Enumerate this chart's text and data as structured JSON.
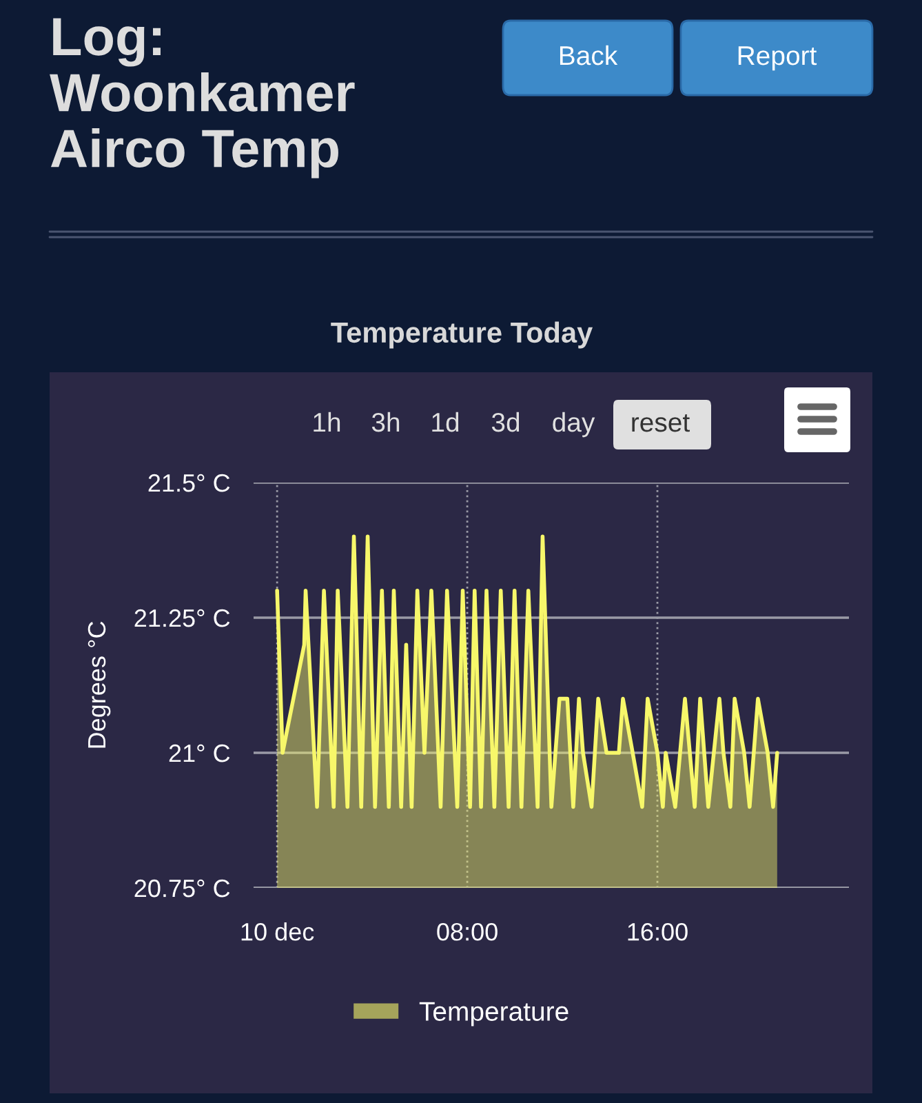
{
  "chart_data": {
    "type": "area",
    "title": "Temperature Today",
    "ylabel": "Degrees °C",
    "annotations": [
      "Log:\nWoonkamer\nAirco Temp",
      "Back",
      "Report",
      "1h",
      "3h",
      "1d",
      "3d",
      "day",
      "reset"
    ],
    "x": [
      0.0,
      0.23,
      1.14,
      1.2,
      1.68,
      1.97,
      2.38,
      2.55,
      2.96,
      3.23,
      3.54,
      3.81,
      4.12,
      4.41,
      4.7,
      4.91,
      5.22,
      5.43,
      5.66,
      5.9,
      6.2,
      6.49,
      6.59,
      6.88,
      7.15,
      7.58,
      7.81,
      8.12,
      8.31,
      8.58,
      8.81,
      9.14,
      9.41,
      9.74,
      9.99,
      10.28,
      10.57,
      10.96,
      11.17,
      11.54,
      11.88,
      12.21,
      12.46,
      12.7,
      12.87,
      13.23,
      13.51,
      13.86,
      14.38,
      14.55,
      14.96,
      15.36,
      15.59,
      16.0,
      16.23,
      16.35,
      16.75,
      17.16,
      17.57,
      17.8,
      18.14,
      18.61,
      18.78,
      19.07,
      19.25,
      19.65,
      19.88,
      20.23,
      20.64,
      20.87,
      21.04
    ],
    "series": [
      {
        "name": "Temperature",
        "color": "#f7f76a",
        "values": [
          21.3,
          21.0,
          21.2,
          21.3,
          20.9,
          21.3,
          20.9,
          21.3,
          20.9,
          21.4,
          20.9,
          21.4,
          20.9,
          21.3,
          20.9,
          21.3,
          20.9,
          21.2,
          20.9,
          21.3,
          21.0,
          21.3,
          21.2,
          20.9,
          21.3,
          20.9,
          21.3,
          20.9,
          21.3,
          20.9,
          21.3,
          20.9,
          21.3,
          20.9,
          21.3,
          20.9,
          21.3,
          20.9,
          21.4,
          20.9,
          21.1,
          21.1,
          20.9,
          21.1,
          21.0,
          20.9,
          21.1,
          21.0,
          21.0,
          21.1,
          21.0,
          20.9,
          21.1,
          21.0,
          20.9,
          21.0,
          20.9,
          21.1,
          20.9,
          21.1,
          20.9,
          21.1,
          21.0,
          20.9,
          21.1,
          21.0,
          20.9,
          21.1,
          21.0,
          20.9,
          21.0
        ]
      }
    ],
    "xlim": [
      -0.99,
      24.06
    ],
    "ylim": [
      20.75,
      21.5
    ],
    "xticks": [
      {
        "value": 0,
        "label": "10 dec"
      },
      {
        "value": 8,
        "label": "08:00"
      },
      {
        "value": 16,
        "label": "16:00"
      }
    ],
    "yticks": [
      {
        "value": 20.75,
        "label": "20.75° C"
      },
      {
        "value": 21,
        "label": "21° C"
      },
      {
        "value": 21.25,
        "label": "21.25° C"
      },
      {
        "value": 21.5,
        "label": "21.5° C"
      }
    ],
    "grid": true,
    "legend": "bottom"
  }
}
